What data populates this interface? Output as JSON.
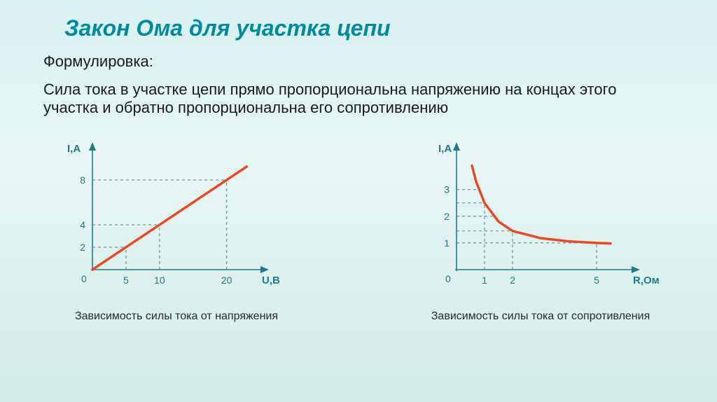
{
  "title": "Закон Ома для участка цепи",
  "subtitle": "Формулировка:",
  "body": "Сила тока в участке цепи прямо пропорциональна напряжению на концах этого участка и обратно пропорциональна его сопротивлению",
  "chart1": {
    "type": "line",
    "caption": "Зависимость силы тока от напряжения",
    "y_label": "I,A",
    "x_label": "U,B",
    "y_ticks": [
      2,
      4,
      8
    ],
    "x_ticks": [
      5,
      10,
      20
    ],
    "x_max": 24,
    "y_max": 10,
    "points": [
      [
        0,
        0
      ],
      [
        23,
        9.2
      ]
    ],
    "axis_color": "#1f7a8c",
    "line_color": "#e84a27",
    "line_width": 3.5,
    "dash_color": "#4a8590",
    "label_color": "#1f7a8c",
    "label_fontsize": 15,
    "tick_fontsize": 14
  },
  "chart2": {
    "type": "curve",
    "caption": "Зависимость силы тока от сопротивления",
    "y_label": "I,A",
    "x_label": "R,Ом",
    "y_ticks": [
      1,
      2,
      3
    ],
    "x_ticks": [
      1,
      2,
      5
    ],
    "x_max": 6,
    "y_max": 4.2,
    "curve": [
      [
        0.55,
        3.9
      ],
      [
        0.7,
        3.3
      ],
      [
        1,
        2.5
      ],
      [
        1.5,
        1.8
      ],
      [
        2,
        1.45
      ],
      [
        3,
        1.18
      ],
      [
        4,
        1.06
      ],
      [
        5,
        1.0
      ],
      [
        5.5,
        0.98
      ]
    ],
    "axis_color": "#1f7a8c",
    "line_color": "#e84a27",
    "line_width": 3.5,
    "dash_color": "#4a8590",
    "label_color": "#1f7a8c",
    "label_fontsize": 15,
    "tick_fontsize": 14
  }
}
